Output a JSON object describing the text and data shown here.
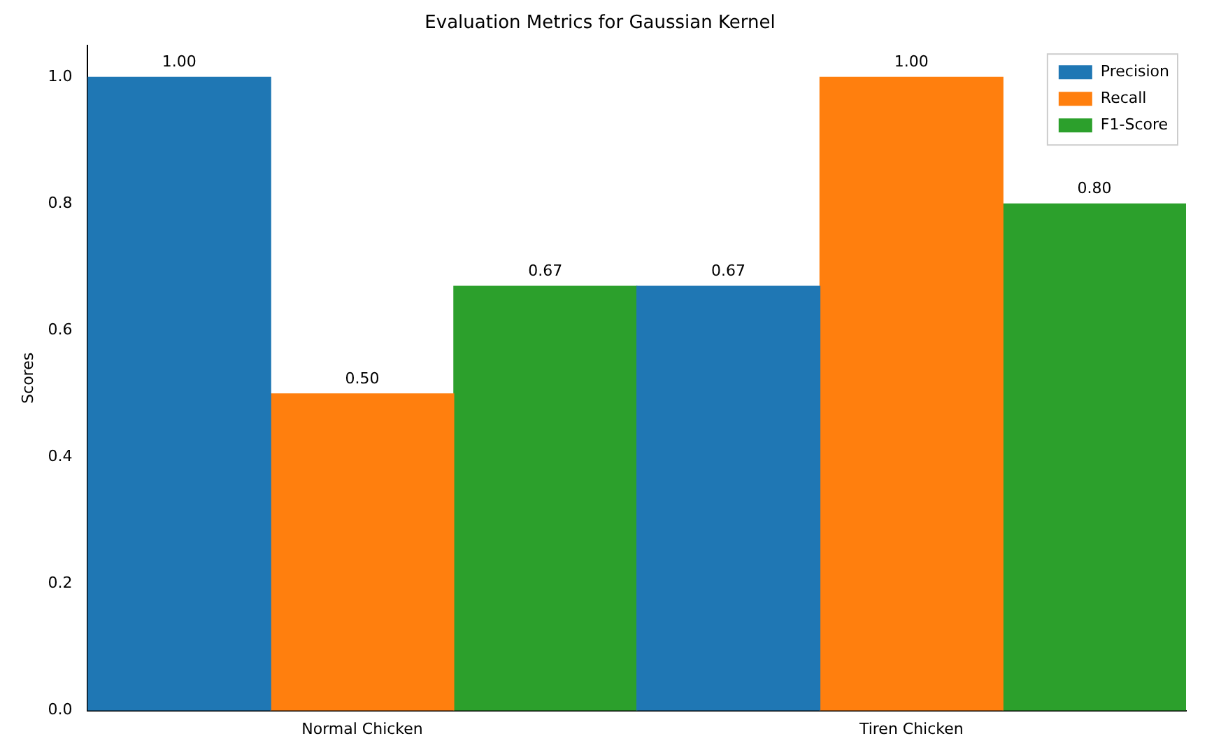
{
  "chart_data": {
    "type": "bar",
    "title": "Evaluation Metrics for Gaussian Kernel",
    "ylabel": "Scores",
    "categories": [
      "Normal Chicken",
      "Tiren Chicken"
    ],
    "series": [
      {
        "name": "Precision",
        "color": "#1f77b4",
        "values": [
          1.0,
          0.67
        ],
        "value_labels": [
          "1.00",
          "0.67"
        ]
      },
      {
        "name": "Recall",
        "color": "#ff7f0e",
        "values": [
          0.5,
          1.0
        ],
        "value_labels": [
          "0.50",
          "1.00"
        ]
      },
      {
        "name": "F1-Score",
        "color": "#2ca02c",
        "values": [
          0.67,
          0.8
        ],
        "value_labels": [
          "0.67",
          "0.80"
        ]
      }
    ],
    "ylim": [
      0,
      1.05
    ],
    "yticks": [
      {
        "value": 0,
        "label": "0.0"
      },
      {
        "value": 0.2,
        "label": "0.2"
      },
      {
        "value": 0.4,
        "label": "0.4"
      },
      {
        "value": 0.6,
        "label": "0.6"
      },
      {
        "value": 0.8,
        "label": "0.8"
      },
      {
        "value": 1.0,
        "label": "1.0"
      }
    ],
    "grid": false,
    "legend": "top right"
  }
}
